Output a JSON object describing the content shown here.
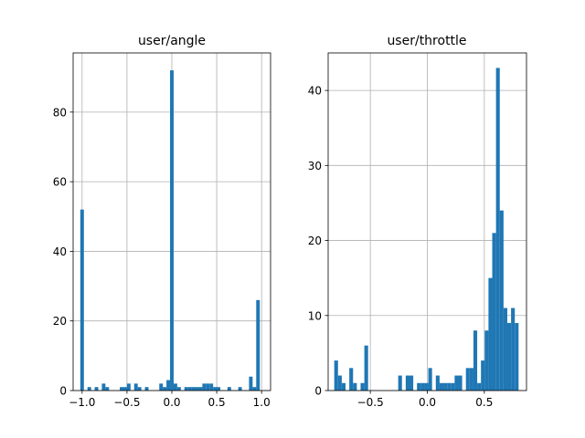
{
  "colors": {
    "bar": "#1f77b4",
    "grid": "#b0b0b0",
    "axis": "#000000",
    "background": "#ffffff"
  },
  "chart_data": [
    {
      "type": "bar",
      "title": "user/angle",
      "xlabel": "",
      "ylabel": "",
      "grid": true,
      "xlim": [
        -1.1,
        1.1
      ],
      "ylim": [
        0,
        97
      ],
      "xticks": [
        -1.0,
        -0.5,
        0.0,
        0.5,
        1.0
      ],
      "xtick_labels": [
        "−1.0",
        "−0.5",
        "0.0",
        "0.5",
        "1.0"
      ],
      "yticks": [
        0,
        20,
        40,
        60,
        80
      ],
      "ytick_labels": [
        "0",
        "20",
        "40",
        "60",
        "80"
      ],
      "bin_width": 0.04,
      "bins": [
        {
          "x": -1.0,
          "count": 52
        },
        {
          "x": -0.96,
          "count": 0
        },
        {
          "x": -0.92,
          "count": 1
        },
        {
          "x": -0.88,
          "count": 0
        },
        {
          "x": -0.84,
          "count": 1
        },
        {
          "x": -0.8,
          "count": 0
        },
        {
          "x": -0.76,
          "count": 2
        },
        {
          "x": -0.72,
          "count": 1
        },
        {
          "x": -0.68,
          "count": 0
        },
        {
          "x": -0.64,
          "count": 0
        },
        {
          "x": -0.6,
          "count": 0
        },
        {
          "x": -0.56,
          "count": 1
        },
        {
          "x": -0.52,
          "count": 1
        },
        {
          "x": -0.48,
          "count": 2
        },
        {
          "x": -0.44,
          "count": 0
        },
        {
          "x": -0.4,
          "count": 2
        },
        {
          "x": -0.36,
          "count": 1
        },
        {
          "x": -0.32,
          "count": 0
        },
        {
          "x": -0.28,
          "count": 1
        },
        {
          "x": -0.24,
          "count": 0
        },
        {
          "x": -0.2,
          "count": 0
        },
        {
          "x": -0.16,
          "count": 0
        },
        {
          "x": -0.12,
          "count": 2
        },
        {
          "x": -0.08,
          "count": 1
        },
        {
          "x": -0.04,
          "count": 3
        },
        {
          "x": 0.0,
          "count": 92
        },
        {
          "x": 0.04,
          "count": 2
        },
        {
          "x": 0.08,
          "count": 1
        },
        {
          "x": 0.12,
          "count": 0
        },
        {
          "x": 0.16,
          "count": 1
        },
        {
          "x": 0.2,
          "count": 1
        },
        {
          "x": 0.24,
          "count": 1
        },
        {
          "x": 0.28,
          "count": 1
        },
        {
          "x": 0.32,
          "count": 1
        },
        {
          "x": 0.36,
          "count": 2
        },
        {
          "x": 0.4,
          "count": 2
        },
        {
          "x": 0.44,
          "count": 2
        },
        {
          "x": 0.48,
          "count": 1
        },
        {
          "x": 0.52,
          "count": 1
        },
        {
          "x": 0.56,
          "count": 0
        },
        {
          "x": 0.6,
          "count": 0
        },
        {
          "x": 0.64,
          "count": 1
        },
        {
          "x": 0.68,
          "count": 0
        },
        {
          "x": 0.72,
          "count": 0
        },
        {
          "x": 0.76,
          "count": 1
        },
        {
          "x": 0.8,
          "count": 0
        },
        {
          "x": 0.84,
          "count": 0
        },
        {
          "x": 0.88,
          "count": 4
        },
        {
          "x": 0.92,
          "count": 1
        },
        {
          "x": 0.96,
          "count": 26
        }
      ]
    },
    {
      "type": "bar",
      "title": "user/throttle",
      "xlabel": "",
      "ylabel": "",
      "grid": true,
      "xlim": [
        -0.87,
        0.87
      ],
      "ylim": [
        0,
        45
      ],
      "xticks": [
        -0.5,
        0.0,
        0.5
      ],
      "xtick_labels": [
        "−0.5",
        "0.0",
        "0.5"
      ],
      "yticks": [
        0,
        10,
        20,
        30,
        40
      ],
      "ytick_labels": [
        "0",
        "10",
        "20",
        "30",
        "40"
      ],
      "bin_width": 0.033,
      "bins": [
        {
          "x": -0.8,
          "count": 4
        },
        {
          "x": -0.767,
          "count": 2
        },
        {
          "x": -0.734,
          "count": 1
        },
        {
          "x": -0.701,
          "count": 0
        },
        {
          "x": -0.668,
          "count": 3
        },
        {
          "x": -0.635,
          "count": 1
        },
        {
          "x": -0.602,
          "count": 0
        },
        {
          "x": -0.569,
          "count": 1
        },
        {
          "x": -0.536,
          "count": 6
        },
        {
          "x": -0.503,
          "count": 0
        },
        {
          "x": -0.47,
          "count": 0
        },
        {
          "x": -0.437,
          "count": 0
        },
        {
          "x": -0.404,
          "count": 0
        },
        {
          "x": -0.371,
          "count": 0
        },
        {
          "x": -0.338,
          "count": 0
        },
        {
          "x": -0.305,
          "count": 0
        },
        {
          "x": -0.272,
          "count": 0
        },
        {
          "x": -0.239,
          "count": 2
        },
        {
          "x": -0.206,
          "count": 0
        },
        {
          "x": -0.173,
          "count": 2
        },
        {
          "x": -0.14,
          "count": 2
        },
        {
          "x": -0.107,
          "count": 0
        },
        {
          "x": -0.074,
          "count": 1
        },
        {
          "x": -0.041,
          "count": 1
        },
        {
          "x": -0.008,
          "count": 1
        },
        {
          "x": 0.025,
          "count": 3
        },
        {
          "x": 0.058,
          "count": 0
        },
        {
          "x": 0.091,
          "count": 2
        },
        {
          "x": 0.124,
          "count": 1
        },
        {
          "x": 0.157,
          "count": 1
        },
        {
          "x": 0.19,
          "count": 1
        },
        {
          "x": 0.223,
          "count": 1
        },
        {
          "x": 0.256,
          "count": 2
        },
        {
          "x": 0.289,
          "count": 2
        },
        {
          "x": 0.322,
          "count": 0
        },
        {
          "x": 0.355,
          "count": 3
        },
        {
          "x": 0.388,
          "count": 3
        },
        {
          "x": 0.421,
          "count": 8
        },
        {
          "x": 0.454,
          "count": 1
        },
        {
          "x": 0.487,
          "count": 4
        },
        {
          "x": 0.52,
          "count": 8
        },
        {
          "x": 0.553,
          "count": 15
        },
        {
          "x": 0.586,
          "count": 21
        },
        {
          "x": 0.619,
          "count": 43
        },
        {
          "x": 0.652,
          "count": 24
        },
        {
          "x": 0.685,
          "count": 11
        },
        {
          "x": 0.718,
          "count": 9
        },
        {
          "x": 0.751,
          "count": 11
        },
        {
          "x": 0.784,
          "count": 9
        }
      ]
    }
  ]
}
